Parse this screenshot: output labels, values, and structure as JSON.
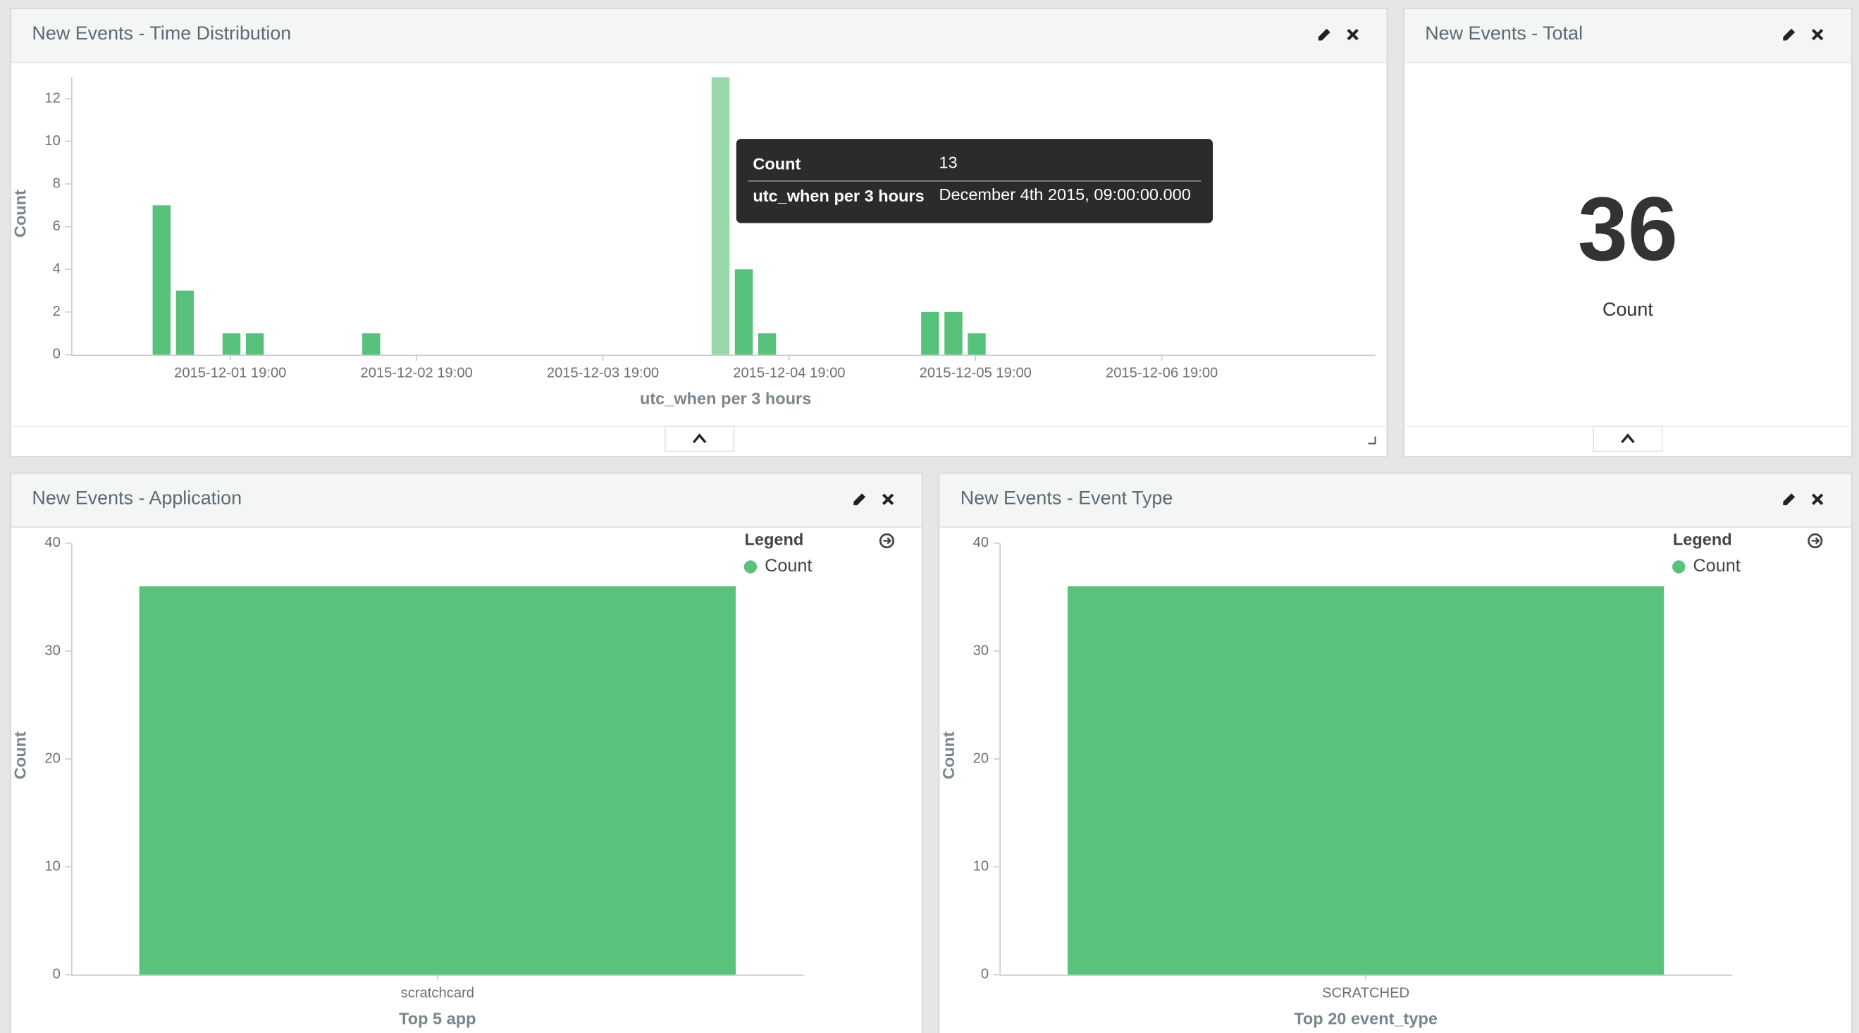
{
  "panels": [
    {
      "title": "New Events - Time Distribution",
      "chart": {
        "type": "histogram",
        "y_label": "Count",
        "x_label": "utc_when per 3 hours",
        "color": "#57c17b",
        "hover_color": "#98d8ab",
        "x": [
          "2015-12-01 09:00",
          "2015-12-01 12:00",
          "2015-12-01 18:00",
          "2015-12-01 21:00",
          "2015-12-02 12:00",
          "2015-12-04 09:00",
          "2015-12-04 12:00",
          "2015-12-04 15:00",
          "2015-12-05 12:00",
          "2015-12-05 15:00",
          "2015-12-05 18:00"
        ],
        "values": [
          7,
          3,
          1,
          1,
          1,
          13,
          4,
          1,
          2,
          2,
          1
        ],
        "xlim": [
          "2015-11-30 22:30",
          "2015-12-07 22:30"
        ],
        "xticks": [
          "2015-12-01 19:00",
          "2015-12-02 19:00",
          "2015-12-03 19:00",
          "2015-12-04 19:00",
          "2015-12-05 19:00",
          "2015-12-06 19:00"
        ],
        "ylim": [
          0,
          13
        ],
        "yticks": [
          0,
          2,
          4,
          6,
          8,
          10,
          12
        ],
        "tooltip": {
          "value_label": "Count",
          "x_label": "utc_when per 3 hours",
          "x_text": "December 4th 2015, 09:00:00.000"
        }
      }
    },
    {
      "title": "New Events - Total",
      "metric": {
        "value": 36,
        "label": "Count"
      }
    },
    {
      "title": "New Events - Application",
      "chart": {
        "type": "bar",
        "y_label": "Count",
        "x_label": "Top 5 app",
        "color": "#5bc27e",
        "legend_title": "Legend",
        "categories": [
          "scratchcard"
        ],
        "series": [
          {
            "name": "Count",
            "color": "#5bc27e",
            "values": [
              36
            ]
          }
        ],
        "ylim": [
          0,
          40
        ],
        "yticks": [
          0,
          10,
          20,
          30,
          40
        ]
      }
    },
    {
      "title": "New Events - Event Type",
      "chart": {
        "type": "bar",
        "y_label": "Count",
        "x_label": "Top 20 event_type",
        "color": "#5bc27e",
        "legend_title": "Legend",
        "categories": [
          "SCRATCHED"
        ],
        "series": [
          {
            "name": "Count",
            "color": "#5bc27e",
            "values": [
              36
            ]
          }
        ],
        "ylim": [
          0,
          40
        ],
        "yticks": [
          0,
          10,
          20,
          30,
          40
        ]
      }
    }
  ]
}
